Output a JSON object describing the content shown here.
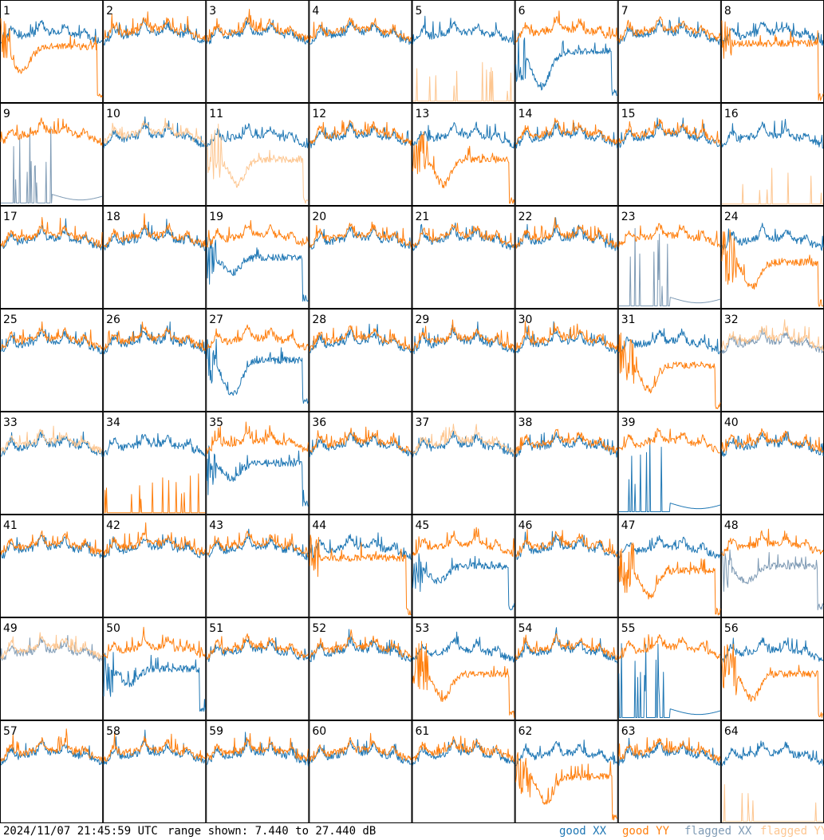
{
  "footer": {
    "timestamp": "2024/11/07 21:45:59 UTC",
    "range": "range shown: 7.440 to 27.440 dB"
  },
  "colors": {
    "good_xx": "#1f77b4",
    "good_yy": "#ff7f0e",
    "flagged_xx": "#7f9bb5",
    "flagged_yy": "#fdc690"
  },
  "chart_data": {
    "type": "line",
    "layout": {
      "rows": 8,
      "cols": 8
    },
    "y_range_db": [
      7.44,
      27.44
    ],
    "legend": {
      "placement": "bottom-right",
      "entries": [
        {
          "key": "good_xx",
          "label": "good XX"
        },
        {
          "key": "good_yy",
          "label": "good YY"
        },
        {
          "key": "flagged_xx",
          "label": "flagged XX"
        },
        {
          "key": "flagged_yy",
          "label": "flagged YY"
        }
      ]
    },
    "panels": [
      {
        "id": "1",
        "xx": "good",
        "yy": "good",
        "pattern": "dip"
      },
      {
        "id": "2",
        "xx": "good",
        "yy": "good",
        "pattern": "normal"
      },
      {
        "id": "3",
        "xx": "good",
        "yy": "good",
        "pattern": "normal"
      },
      {
        "id": "4",
        "xx": "good",
        "yy": "good",
        "pattern": "normal"
      },
      {
        "id": "5",
        "xx": "good",
        "yy": "flagged",
        "pattern": "yy_spikes"
      },
      {
        "id": "6",
        "xx": "good",
        "yy": "good",
        "pattern": "xx_dip"
      },
      {
        "id": "7",
        "xx": "good",
        "yy": "good",
        "pattern": "normal"
      },
      {
        "id": "8",
        "xx": "good",
        "yy": "good",
        "pattern": "flat"
      },
      {
        "id": "9",
        "xx": "flagged",
        "yy": "good",
        "pattern": "xx_spikes"
      },
      {
        "id": "10",
        "xx": "good",
        "yy": "flagged",
        "pattern": "normal"
      },
      {
        "id": "11",
        "xx": "good",
        "yy": "flagged",
        "pattern": "yy_low"
      },
      {
        "id": "12",
        "xx": "good",
        "yy": "good",
        "pattern": "normal"
      },
      {
        "id": "13",
        "xx": "good",
        "yy": "good",
        "pattern": "yy_low"
      },
      {
        "id": "14",
        "xx": "good",
        "yy": "good",
        "pattern": "normal"
      },
      {
        "id": "15",
        "xx": "good",
        "yy": "good",
        "pattern": "normal"
      },
      {
        "id": "16",
        "xx": "good",
        "yy": "flagged",
        "pattern": "yy_spikes"
      },
      {
        "id": "17",
        "xx": "good",
        "yy": "good",
        "pattern": "normal"
      },
      {
        "id": "18",
        "xx": "good",
        "yy": "good",
        "pattern": "normal"
      },
      {
        "id": "19",
        "xx": "good",
        "yy": "good",
        "pattern": "xx_low"
      },
      {
        "id": "20",
        "xx": "good",
        "yy": "good",
        "pattern": "normal"
      },
      {
        "id": "21",
        "xx": "good",
        "yy": "good",
        "pattern": "normal"
      },
      {
        "id": "22",
        "xx": "good",
        "yy": "good",
        "pattern": "normal"
      },
      {
        "id": "23",
        "xx": "flagged",
        "yy": "good",
        "pattern": "xx_spikes"
      },
      {
        "id": "24",
        "xx": "good",
        "yy": "good",
        "pattern": "yy_low"
      },
      {
        "id": "25",
        "xx": "good",
        "yy": "good",
        "pattern": "normal"
      },
      {
        "id": "26",
        "xx": "good",
        "yy": "good",
        "pattern": "normal"
      },
      {
        "id": "27",
        "xx": "good",
        "yy": "good",
        "pattern": "xx_dip"
      },
      {
        "id": "28",
        "xx": "good",
        "yy": "good",
        "pattern": "normal"
      },
      {
        "id": "29",
        "xx": "good",
        "yy": "good",
        "pattern": "normal"
      },
      {
        "id": "30",
        "xx": "good",
        "yy": "good",
        "pattern": "normal"
      },
      {
        "id": "31",
        "xx": "good",
        "yy": "good",
        "pattern": "yy_low"
      },
      {
        "id": "32",
        "xx": "flagged",
        "yy": "flagged",
        "pattern": "normal"
      },
      {
        "id": "33",
        "xx": "good",
        "yy": "flagged",
        "pattern": "normal"
      },
      {
        "id": "34",
        "xx": "good",
        "yy": "good",
        "pattern": "yy_spikes"
      },
      {
        "id": "35",
        "xx": "good",
        "yy": "good",
        "pattern": "xx_low"
      },
      {
        "id": "36",
        "xx": "good",
        "yy": "good",
        "pattern": "normal"
      },
      {
        "id": "37",
        "xx": "good",
        "yy": "flagged",
        "pattern": "normal"
      },
      {
        "id": "38",
        "xx": "good",
        "yy": "good",
        "pattern": "normal"
      },
      {
        "id": "39",
        "xx": "good",
        "yy": "good",
        "pattern": "xx_spikes"
      },
      {
        "id": "40",
        "xx": "good",
        "yy": "good",
        "pattern": "normal"
      },
      {
        "id": "41",
        "xx": "good",
        "yy": "good",
        "pattern": "normal"
      },
      {
        "id": "42",
        "xx": "good",
        "yy": "good",
        "pattern": "normal"
      },
      {
        "id": "43",
        "xx": "good",
        "yy": "good",
        "pattern": "normal"
      },
      {
        "id": "44",
        "xx": "good",
        "yy": "good",
        "pattern": "flat"
      },
      {
        "id": "45",
        "xx": "good",
        "yy": "good",
        "pattern": "xx_low"
      },
      {
        "id": "46",
        "xx": "good",
        "yy": "good",
        "pattern": "normal"
      },
      {
        "id": "47",
        "xx": "good",
        "yy": "good",
        "pattern": "yy_low"
      },
      {
        "id": "48",
        "xx": "flagged",
        "yy": "good",
        "pattern": "xx_low"
      },
      {
        "id": "49",
        "xx": "flagged",
        "yy": "flagged",
        "pattern": "normal"
      },
      {
        "id": "50",
        "xx": "good",
        "yy": "good",
        "pattern": "xx_low"
      },
      {
        "id": "51",
        "xx": "good",
        "yy": "good",
        "pattern": "normal"
      },
      {
        "id": "52",
        "xx": "good",
        "yy": "good",
        "pattern": "normal"
      },
      {
        "id": "53",
        "xx": "good",
        "yy": "good",
        "pattern": "yy_low"
      },
      {
        "id": "54",
        "xx": "good",
        "yy": "good",
        "pattern": "normal"
      },
      {
        "id": "55",
        "xx": "good",
        "yy": "good",
        "pattern": "xx_spikes"
      },
      {
        "id": "56",
        "xx": "good",
        "yy": "good",
        "pattern": "yy_low"
      },
      {
        "id": "57",
        "xx": "good",
        "yy": "good",
        "pattern": "normal"
      },
      {
        "id": "58",
        "xx": "good",
        "yy": "good",
        "pattern": "normal"
      },
      {
        "id": "59",
        "xx": "good",
        "yy": "good",
        "pattern": "normal"
      },
      {
        "id": "60",
        "xx": "good",
        "yy": "good",
        "pattern": "normal"
      },
      {
        "id": "61",
        "xx": "good",
        "yy": "good",
        "pattern": "normal"
      },
      {
        "id": "62",
        "xx": "good",
        "yy": "good",
        "pattern": "yy_low"
      },
      {
        "id": "63",
        "xx": "good",
        "yy": "good",
        "pattern": "normal"
      },
      {
        "id": "64",
        "xx": "good",
        "yy": "flagged",
        "pattern": "yy_spikes"
      }
    ]
  }
}
